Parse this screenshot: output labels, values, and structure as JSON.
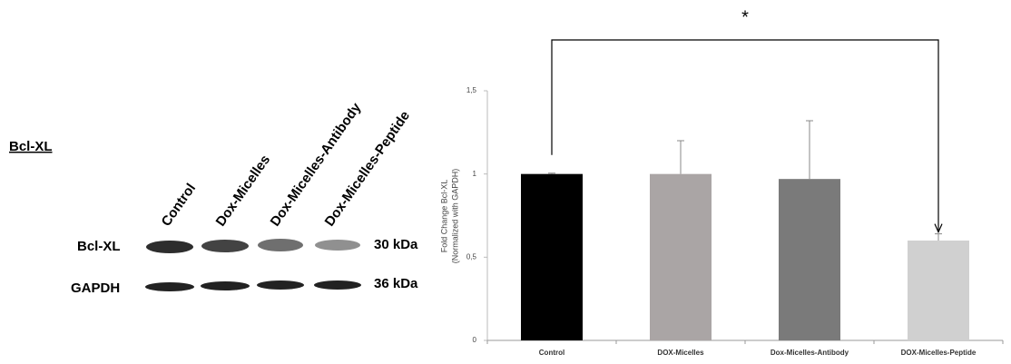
{
  "blot": {
    "heading": "Bcl-XL",
    "lanes": [
      "Control",
      "Dox-Micelles",
      "Dox-Micelles-Antibody",
      "Dox-Micelles-Peptide"
    ],
    "rows": [
      {
        "label": "Bcl-XL",
        "size": "30 kDa"
      },
      {
        "label": "GAPDH",
        "size": "36 kDa"
      }
    ]
  },
  "chart_data": {
    "type": "bar",
    "y_label": [
      "Fold Change Bcl-XL",
      "(Normalized with GAPDH)"
    ],
    "categories": [
      "Control",
      "DOX-Micelles",
      "Dox-Micelles-Antibody",
      "DOX-Micelles-Peptide"
    ],
    "values": [
      1,
      1.0,
      0.97,
      0.6
    ],
    "errors": [
      0.005,
      0.2,
      0.35,
      0.04
    ],
    "colors": [
      "#000000",
      "#aaa5a5",
      "#7a7a7a",
      "#d0d0d0"
    ],
    "ylim": [
      0,
      1.5
    ],
    "yticks": [
      0,
      {
        "value": 0.5,
        "label": "0,5"
      },
      1,
      {
        "value": 1.5,
        "label": "1,5"
      }
    ],
    "annotation": "*"
  }
}
